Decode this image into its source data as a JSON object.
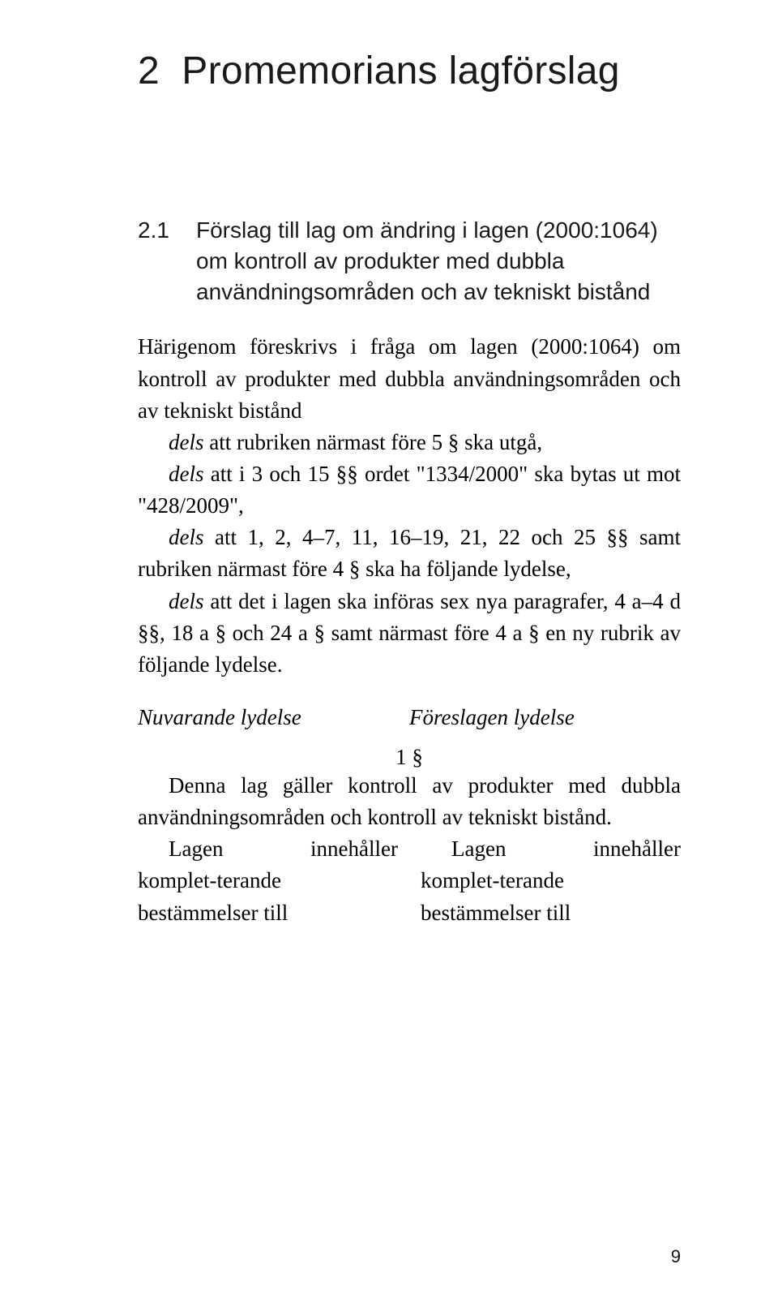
{
  "chapter": {
    "number": "2",
    "title": "Promemorians lagförslag"
  },
  "section": {
    "number": "2.1",
    "title": "Förslag till lag om ändring i lagen (2000:1064) om kontroll av produkter med dubbla användningsområden och av tekniskt bistånd"
  },
  "intro": "Härigenom föreskrivs i fråga om lagen (2000:1064) om kontroll av produkter med dubbla användningsområden och av tekniskt bistånd",
  "dels": {
    "d1_it": "dels",
    "d1_rest": " att rubriken närmast före 5 § ska utgå,",
    "d2_it": "dels",
    "d2_rest": " att i 3 och 15 §§ ordet \"1334/2000\" ska bytas ut mot \"428/2009\",",
    "d3_it": "dels",
    "d3_rest": " att 1, 2, 4–7, 11, 16–19, 21, 22 och 25 §§ samt rubriken närmast före 4 § ska ha följande lydelse,",
    "d4_it": "dels",
    "d4_rest": " att det i lagen ska införas sex nya paragrafer, 4 a–4 d §§, 18 a § och 24 a § samt närmast före 4 a § en ny rubrik av följande lydelse."
  },
  "col_heads": {
    "left": "Nuvarande lydelse",
    "right": "Föreslagen lydelse"
  },
  "section_symbol": "1 §",
  "para_full": "Denna lag gäller kontroll av produkter med dubbla användningsområden och kontroll av tekniskt bistånd.",
  "cols": {
    "left": "Lagen innehåller komplet-terande bestämmelser till",
    "right": "Lagen innehåller komplet-terande bestämmelser till"
  },
  "page_number": "9"
}
